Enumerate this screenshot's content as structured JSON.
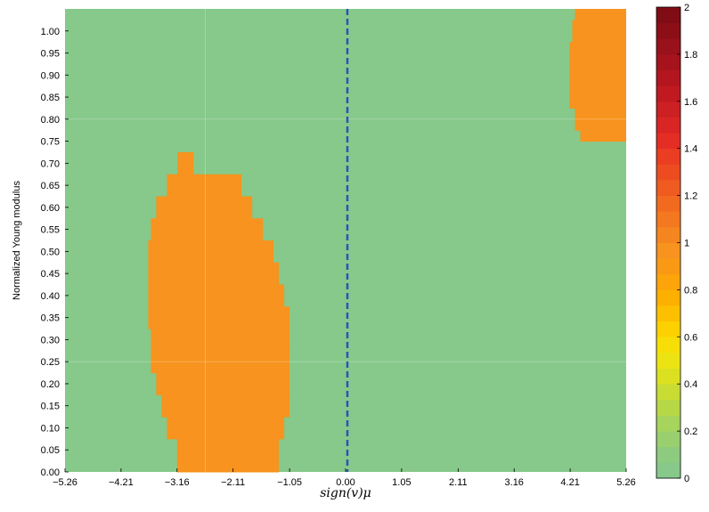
{
  "chart_data": {
    "type": "heatmap",
    "title": "",
    "xlabel": "sign(v)μ",
    "ylabel": "Normalized Young modulus",
    "xlim": [
      -5.26,
      5.26
    ],
    "ylim": [
      0.0,
      1.05
    ],
    "x_ticks": [
      "−5.26",
      "−4.21",
      "−3.16",
      "−2.11",
      "−1.05",
      "0.00",
      "1.05",
      "2.11",
      "3.16",
      "4.21",
      "5.26"
    ],
    "x_tick_values": [
      -5.26,
      -4.21,
      -3.16,
      -2.11,
      -1.05,
      0.0,
      1.05,
      2.11,
      3.16,
      4.21,
      5.26
    ],
    "y_ticks": [
      "0.00",
      "0.05",
      "0.10",
      "0.15",
      "0.20",
      "0.25",
      "0.30",
      "0.35",
      "0.40",
      "0.45",
      "0.50",
      "0.55",
      "0.60",
      "0.65",
      "0.70",
      "0.75",
      "0.80",
      "0.85",
      "0.90",
      "0.95",
      "1.00"
    ],
    "y_tick_values": [
      0.0,
      0.05,
      0.1,
      0.15,
      0.2,
      0.25,
      0.3,
      0.35,
      0.4,
      0.45,
      0.5,
      0.55,
      0.6,
      0.65,
      0.7,
      0.75,
      0.8,
      0.85,
      0.9,
      0.95,
      1.0
    ],
    "background_value": 0,
    "background_color": "#86c98a",
    "region_value": 1,
    "region_color": "#f7931e",
    "regions": [
      {
        "name": "left-lobe",
        "rows": [
          {
            "y": [
              0.0,
              0.025
            ],
            "x": [
              -3.16,
              -1.25
            ]
          },
          {
            "y": [
              0.025,
              0.075
            ],
            "x": [
              -3.16,
              -1.25
            ]
          },
          {
            "y": [
              0.075,
              0.125
            ],
            "x": [
              -3.35,
              -1.15
            ]
          },
          {
            "y": [
              0.125,
              0.175
            ],
            "x": [
              -3.45,
              -1.05
            ]
          },
          {
            "y": [
              0.175,
              0.225
            ],
            "x": [
              -3.55,
              -1.05
            ]
          },
          {
            "y": [
              0.225,
              0.275
            ],
            "x": [
              -3.65,
              -1.05
            ]
          },
          {
            "y": [
              0.275,
              0.325
            ],
            "x": [
              -3.65,
              -1.05
            ]
          },
          {
            "y": [
              0.325,
              0.375
            ],
            "x": [
              -3.7,
              -1.05
            ]
          },
          {
            "y": [
              0.375,
              0.425
            ],
            "x": [
              -3.7,
              -1.15
            ]
          },
          {
            "y": [
              0.425,
              0.475
            ],
            "x": [
              -3.7,
              -1.25
            ]
          },
          {
            "y": [
              0.475,
              0.525
            ],
            "x": [
              -3.7,
              -1.35
            ]
          },
          {
            "y": [
              0.525,
              0.575
            ],
            "x": [
              -3.65,
              -1.55
            ]
          },
          {
            "y": [
              0.575,
              0.625
            ],
            "x": [
              -3.55,
              -1.75
            ]
          },
          {
            "y": [
              0.625,
              0.675
            ],
            "x": [
              -3.35,
              -1.95
            ]
          },
          {
            "y": [
              0.675,
              0.725
            ],
            "x": [
              -3.15,
              -2.85
            ]
          }
        ]
      },
      {
        "name": "top-right-region",
        "rows": [
          {
            "y": [
              0.75,
              0.775
            ],
            "x": [
              4.4,
              5.26
            ]
          },
          {
            "y": [
              0.775,
              0.825
            ],
            "x": [
              4.3,
              5.26
            ]
          },
          {
            "y": [
              0.825,
              0.875
            ],
            "x": [
              4.2,
              5.26
            ]
          },
          {
            "y": [
              0.875,
              0.925
            ],
            "x": [
              4.2,
              5.26
            ]
          },
          {
            "y": [
              0.925,
              0.975
            ],
            "x": [
              4.2,
              5.26
            ]
          },
          {
            "y": [
              0.975,
              1.025
            ],
            "x": [
              4.25,
              5.26
            ]
          },
          {
            "y": [
              1.025,
              1.05
            ],
            "x": [
              4.3,
              5.26
            ]
          }
        ]
      }
    ],
    "vertical_reference_line": {
      "x": 0.0,
      "style": "dashed",
      "color": "#2a52be"
    },
    "colorbar": {
      "range": [
        0,
        2
      ],
      "ticks": [
        "0",
        "0.2",
        "0.4",
        "0.6",
        "0.8",
        "1",
        "1.2",
        "1.4",
        "1.6",
        "1.8",
        "2"
      ],
      "tick_values": [
        0,
        0.2,
        0.4,
        0.6,
        0.8,
        1.0,
        1.2,
        1.4,
        1.6,
        1.8,
        2.0
      ],
      "colors": [
        "#86c98a",
        "#8dcc7e",
        "#99cf6f",
        "#a6d45c",
        "#b6d847",
        "#c8dc33",
        "#dbe020",
        "#ece313",
        "#f6de06",
        "#fdd100",
        "#fdc000",
        "#fdb000",
        "#fca40a",
        "#fa9914",
        "#f7931e",
        "#f5861f",
        "#f3781f",
        "#f16a1f",
        "#ef5b20",
        "#ed4c21",
        "#ea3d22",
        "#e42d24",
        "#d92624",
        "#cd2022",
        "#c01a20",
        "#b3161e",
        "#a6131c",
        "#99111a",
        "#8c0f18",
        "#800d16"
      ]
    }
  }
}
